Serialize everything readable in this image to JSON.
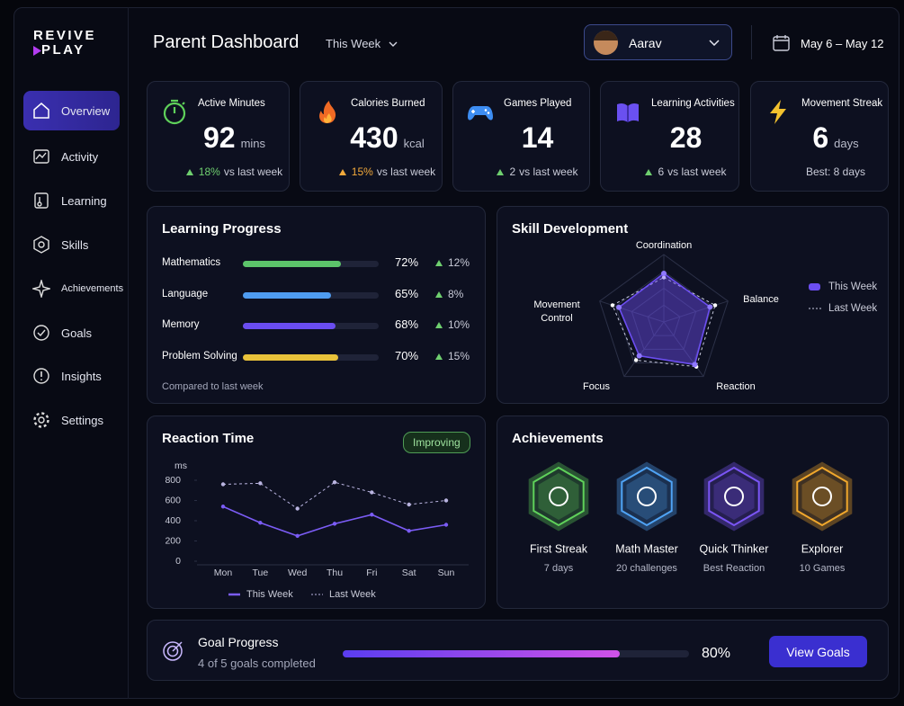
{
  "brand": {
    "line1": "REVIVE",
    "line2": "PLAY"
  },
  "nav": [
    "Overview",
    "Activity",
    "Learning",
    "Skills",
    "Achievements",
    "Goals",
    "Insights",
    "Settings"
  ],
  "header": {
    "title": "Parent Dashboard",
    "period": "This Week",
    "user": "Aarav",
    "dates": "May 6 – May 12"
  },
  "stats": [
    {
      "label": "Active Minutes",
      "value": 92,
      "unit": "mins",
      "delta": "18%",
      "note": "vs last week"
    },
    {
      "label": "Calories Burned",
      "value": 430,
      "unit": "kcal",
      "delta": "15%",
      "note": "vs last week"
    },
    {
      "label": "Games Played",
      "value": 14,
      "delta": "2",
      "note": "vs last week"
    },
    {
      "label": "Learning Activities",
      "value": 28,
      "delta": "6",
      "note": "vs last week"
    },
    {
      "label": "Movement Streak",
      "value": 6,
      "unit": "days",
      "note": "Best: 8 days"
    }
  ],
  "learning": {
    "title": "Learning Progress",
    "rows": [
      {
        "name": "Mathematics",
        "value": 72,
        "value_label": "72%",
        "change": "12%",
        "color": "#5cc46a"
      },
      {
        "name": "Language",
        "value": 65,
        "value_label": "65%",
        "change": "8%",
        "color": "#4f9cf0"
      },
      {
        "name": "Memory",
        "value": 68,
        "value_label": "68%",
        "change": "10%",
        "color": "#6a4df0"
      },
      {
        "name": "Problem Solving",
        "value": 70,
        "value_label": "70%",
        "change": "15%",
        "color": "#e9c23a"
      }
    ],
    "footnote": "Compared to last week"
  },
  "skills": {
    "type": "radar",
    "title": "Skill Development",
    "axes": [
      "Coordination",
      "Balance",
      "Reaction",
      "Focus",
      "Movement Control"
    ],
    "rlim": [
      0,
      100
    ],
    "rticks": [
      25,
      50,
      75,
      100
    ],
    "series": [
      {
        "name": "This Week",
        "color": "#6c4ef2",
        "values": [
          72,
          72,
          78,
          62,
          70
        ]
      },
      {
        "name": "Last Week",
        "color": "#c9cbe0",
        "values": [
          66,
          80,
          82,
          70,
          80
        ]
      }
    ]
  },
  "reaction": {
    "type": "line",
    "title": "Reaction Time",
    "badge": "Improving",
    "ylabel": "ms",
    "categories": [
      "Mon",
      "Tue",
      "Wed",
      "Thu",
      "Fri",
      "Sat",
      "Sun"
    ],
    "ylim": [
      0,
      800
    ],
    "yticks": [
      0,
      200,
      400,
      600,
      800
    ],
    "series": [
      {
        "name": "This Week",
        "color": "#7b5cf5",
        "values": [
          540,
          380,
          250,
          370,
          460,
          300,
          360
        ]
      },
      {
        "name": "Last Week",
        "color": "#b9b4e0",
        "values": [
          760,
          770,
          520,
          780,
          680,
          560,
          600
        ]
      }
    ]
  },
  "achievements": {
    "title": "Achievements",
    "items": [
      {
        "name": "First Streak",
        "detail": "7 days",
        "color": "#5fd15a"
      },
      {
        "name": "Math Master",
        "detail": "20 challenges",
        "color": "#4fa3f5"
      },
      {
        "name": "Quick Thinker",
        "detail": "Best Reaction",
        "color": "#7a55f5"
      },
      {
        "name": "Explorer",
        "detail": "10 Games",
        "color": "#f0a72c"
      }
    ]
  },
  "goal": {
    "title": "Goal Progress",
    "subtitle": "4 of 5 goals completed",
    "value": 80,
    "value_label": "80%",
    "button": "View Goals"
  }
}
